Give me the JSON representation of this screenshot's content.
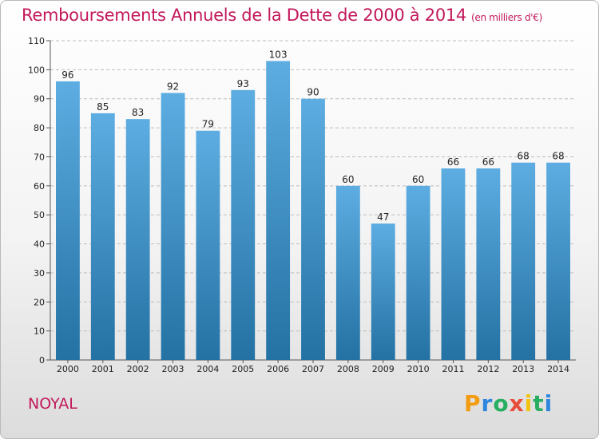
{
  "title": "Remboursements Annuels de la Dette de 2000 à 2014",
  "unit": "(en milliers d'€)",
  "location": "NOYAL",
  "logo": {
    "letters": [
      "P",
      "r",
      "o",
      "x",
      "i",
      "t",
      "i"
    ],
    "colors": [
      "#f39c12",
      "#2e86de",
      "#27ae60",
      "#e74c3c",
      "#f1c40f",
      "#27ae60",
      "#2e86de"
    ]
  },
  "colors": {
    "bar_light": "#5dade2",
    "bar_dark": "#2471a3",
    "title": "#c2185b"
  },
  "chart_data": {
    "type": "bar",
    "categories": [
      "2000",
      "2001",
      "2002",
      "2003",
      "2004",
      "2005",
      "2006",
      "2007",
      "2008",
      "2009",
      "2010",
      "2011",
      "2012",
      "2013",
      "2014"
    ],
    "values": [
      96,
      85,
      83,
      92,
      79,
      93,
      103,
      90,
      60,
      47,
      60,
      66,
      66,
      68,
      68
    ],
    "ylim": [
      0,
      110
    ],
    "yticks": [
      0,
      10,
      20,
      30,
      40,
      50,
      60,
      70,
      80,
      90,
      100,
      110
    ],
    "grid": true
  }
}
